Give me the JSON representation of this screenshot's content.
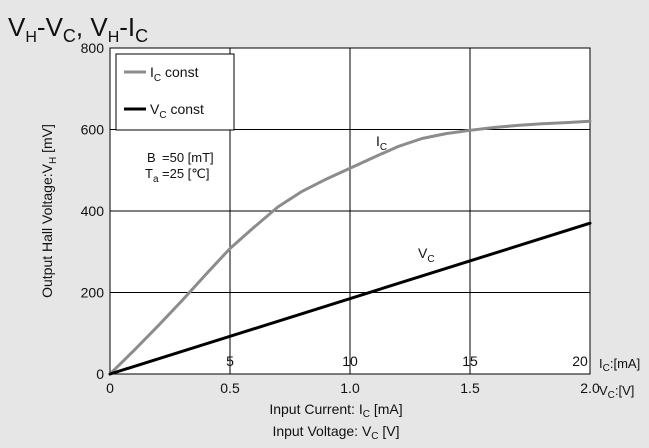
{
  "chart_data": {
    "type": "line",
    "title": {
      "part1_main": "V",
      "part1_sub": "H",
      "part1_dash": "-V",
      "part1_sub2": "C",
      "sep": ", ",
      "part2_main": "V",
      "part2_sub": "H",
      "part2_dash": "-I",
      "part2_sub2": "C"
    },
    "ylabel": {
      "main": "Output Hall Voltage:V",
      "sub": "H",
      "unit": " [mV]"
    },
    "xlabel_current": {
      "main": "Input Current: I",
      "sub": "C",
      "unit": " [mA]"
    },
    "xlabel_voltage": {
      "main": "Input Voltage: V",
      "sub": "C",
      "unit": " [V]"
    },
    "ylim": [
      0,
      800
    ],
    "yticks": [
      "0",
      "200",
      "400",
      "600",
      "800"
    ],
    "x_voltage_lim": [
      0,
      2.0
    ],
    "x_voltage_ticks": [
      "0",
      "0.5",
      "1.0",
      "1.5",
      "2.0"
    ],
    "x_current_ticks": [
      "5",
      "10",
      "15",
      "20"
    ],
    "x_current_unit": {
      "main": "I",
      "sub": "C",
      "unit": ":[mA]"
    },
    "x_voltage_unit": {
      "main": "V",
      "sub": "C",
      "unit": ":[V]"
    },
    "grid": true,
    "legend_position": "top-left",
    "series": [
      {
        "name": "Ic const",
        "legend": {
          "main": "I",
          "sub": "C",
          "rest": " const"
        },
        "curve_label": {
          "main": "I",
          "sub": "C"
        },
        "color": "#8c8c8c",
        "x_voltage": [
          0,
          0.1,
          0.2,
          0.3,
          0.4,
          0.5,
          0.6,
          0.7,
          0.8,
          0.9,
          1.0,
          1.1,
          1.2,
          1.3,
          1.4,
          1.5,
          1.6,
          1.7,
          1.8,
          1.9,
          2.0
        ],
        "values": [
          0,
          58,
          118,
          180,
          245,
          308,
          360,
          410,
          448,
          478,
          505,
          532,
          558,
          578,
          590,
          598,
          605,
          610,
          614,
          617,
          620
        ]
      },
      {
        "name": "Vc const",
        "legend": {
          "main": "V",
          "sub": "C",
          "rest": " const"
        },
        "curve_label": {
          "main": "V",
          "sub": "C"
        },
        "color": "#000000",
        "x_voltage": [
          0,
          2.0
        ],
        "values": [
          0,
          370
        ]
      }
    ],
    "annotations": {
      "B": {
        "label": "B",
        "value": "=50 [mT]"
      },
      "Ta": {
        "label_main": "T",
        "label_sub": "a",
        "value": "=25 [℃]"
      }
    }
  }
}
